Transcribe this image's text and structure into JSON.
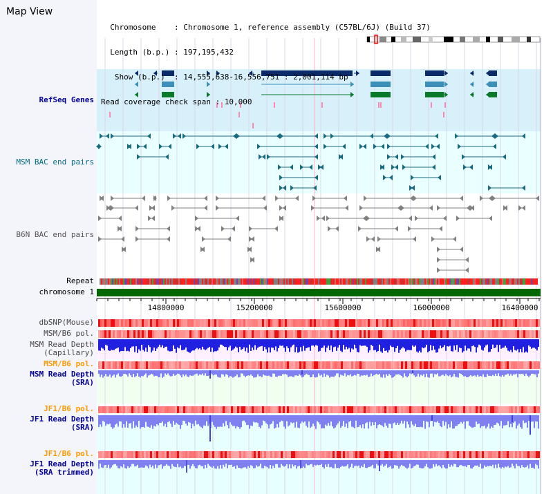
{
  "map_view": {
    "title": "Map View",
    "info_lines": [
      "  Chromosome    : Chromosome 1, reference assembly (C57BL/6J) (Build 37)",
      "  Length (b.p.) : 197,195,432",
      "   Show (b.p.)  : 14,555,638-16,556,751 : 2,001,114 bp",
      "Read coverage check span : 10,000"
    ]
  },
  "tracks": {
    "refseq": "RefSeq Genes",
    "msm_bac": "MSM BAC end pairs",
    "b6n_bac": "B6N BAC end pairs",
    "repeat": "Repeat",
    "chromosome": "chromosome 1",
    "dbsnp": "dbSNP(Mouse)",
    "msm_b6_pol_1": "MSM/B6 pol.",
    "msm_depth_cap": "MSM Read Depth\n(Capillary)",
    "msm_b6_pol_2": "MSM/B6 pol.",
    "msm_depth_sra": "MSM Read Depth\n(SRA)",
    "jf1_b6_pol_1": "JF1/B6 pol.",
    "jf1_depth_sra": "JF1 Read Depth\n(SRA)",
    "jf1_b6_pol_2": "JF1/B6 pol.",
    "jf1_depth_trim": "JF1 Read Depth\n(SRA trimmed)"
  },
  "axis": {
    "ticks": [
      "14800000",
      "15200000",
      "15600000",
      "16000000",
      "16400000"
    ]
  },
  "colors": {
    "refseq_bg": "#d8f0fa",
    "light_bg": "#eaffff",
    "gene_dark": "#0a2a6a",
    "gene_mid": "#3b8fb8",
    "gene_green": "#0a7a2a",
    "bac_teal": "#1a6a80",
    "bac_gray": "#808080",
    "chrom_green": "#006600",
    "depth_blue": "#2020e0",
    "depth_light": "#8080f0",
    "pol_red": "#ff4040"
  }
}
